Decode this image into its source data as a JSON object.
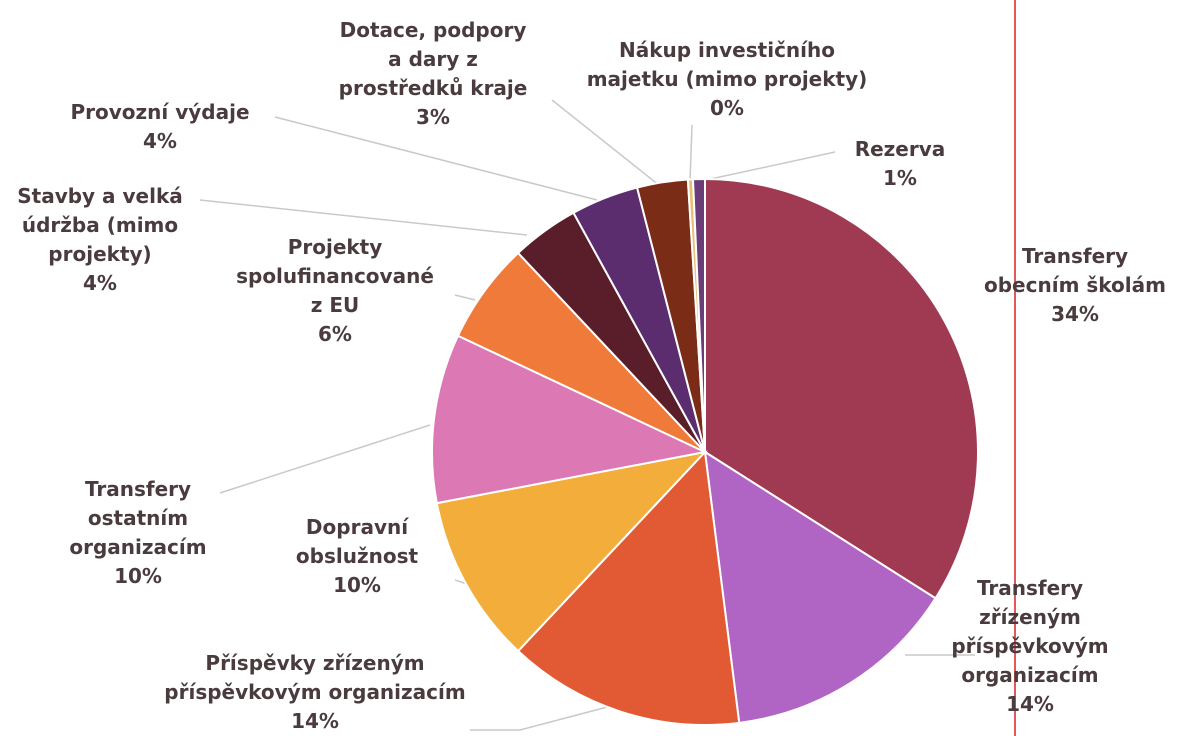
{
  "chart_data": {
    "type": "pie",
    "slices": [
      {
        "label": [
          "Transfery",
          "obecním školám"
        ],
        "percent_label": "34%",
        "value": 34,
        "color": "#a03a52"
      },
      {
        "label": [
          "Transfery",
          "zřízeným",
          "příspěvkovým",
          "organizacím"
        ],
        "percent_label": "14%",
        "value": 14,
        "color": "#b065c4"
      },
      {
        "label": [
          "Příspěvky zřízeným",
          "příspěvkovým organizacím"
        ],
        "percent_label": "14%",
        "value": 14,
        "color": "#e15a34"
      },
      {
        "label": [
          "Dopravní",
          "obslužnost"
        ],
        "percent_label": "10%",
        "value": 10,
        "color": "#f3ad3b"
      },
      {
        "label": [
          "Transfery",
          "ostatním",
          "organizacím"
        ],
        "percent_label": "10%",
        "value": 10,
        "color": "#dc78b4"
      },
      {
        "label": [
          "Projekty",
          "spolufinancované",
          "z EU"
        ],
        "percent_label": "6%",
        "value": 6,
        "color": "#ef7a3a"
      },
      {
        "label": [
          "Stavby a velká",
          "údržba (mimo",
          "projekty)"
        ],
        "percent_label": "4%",
        "value": 4,
        "color": "#5a1e2a"
      },
      {
        "label": [
          "Provozní výdaje"
        ],
        "percent_label": "4%",
        "value": 4,
        "color": "#5c2d6e"
      },
      {
        "label": [
          "Dotace, podpory",
          "a dary z",
          "prostředků kraje"
        ],
        "percent_label": "3%",
        "value": 3,
        "color": "#7a2c17"
      },
      {
        "label": [
          "Nákup investičního",
          "majetku (mimo projekty)"
        ],
        "percent_label": "0%",
        "value": 0.3,
        "color": "#e8c07a"
      },
      {
        "label": [
          "Rezerva"
        ],
        "percent_label": "1%",
        "value": 0.7,
        "color": "#6a3c78"
      }
    ],
    "legend": "none",
    "labels": "outside with leader lines"
  },
  "colors": {
    "label_text": "#4a3b3e",
    "leader_line": "#c9c9c9",
    "margin_line": "#e05a5a",
    "slice_border": "#ffffff"
  }
}
